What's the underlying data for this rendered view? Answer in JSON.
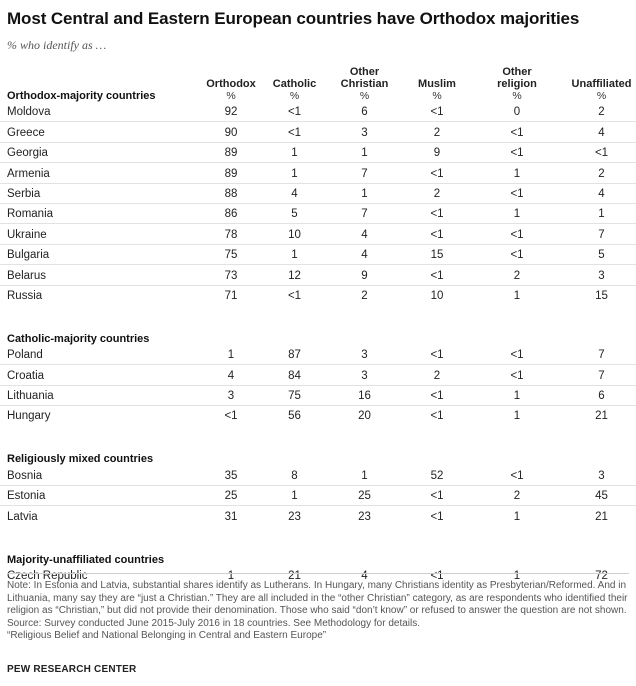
{
  "title": "Most Central and Eastern European countries have Orthodox majorities",
  "subtitle": "% who identify as …",
  "columns": [
    "Orthodox",
    "Catholic",
    "Other Christian",
    "Muslim",
    "Other religion",
    "Unaffiliated"
  ],
  "pct": "%",
  "groups": [
    {
      "label": "Orthodox-majority countries",
      "rows": [
        {
          "country": "Moldova",
          "values": [
            "92",
            "<1",
            "6",
            "<1",
            "0",
            "2"
          ]
        },
        {
          "country": "Greece",
          "values": [
            "90",
            "<1",
            "3",
            "2",
            "<1",
            "4"
          ]
        },
        {
          "country": "Georgia",
          "values": [
            "89",
            "1",
            "1",
            "9",
            "<1",
            "<1"
          ]
        },
        {
          "country": "Armenia",
          "values": [
            "89",
            "1",
            "7",
            "<1",
            "1",
            "2"
          ]
        },
        {
          "country": "Serbia",
          "values": [
            "88",
            "4",
            "1",
            "2",
            "<1",
            "4"
          ]
        },
        {
          "country": "Romania",
          "values": [
            "86",
            "5",
            "7",
            "<1",
            "1",
            "1"
          ]
        },
        {
          "country": "Ukraine",
          "values": [
            "78",
            "10",
            "4",
            "<1",
            "<1",
            "7"
          ]
        },
        {
          "country": "Bulgaria",
          "values": [
            "75",
            "1",
            "4",
            "15",
            "<1",
            "5"
          ]
        },
        {
          "country": "Belarus",
          "values": [
            "73",
            "12",
            "9",
            "<1",
            "2",
            "3"
          ]
        },
        {
          "country": "Russia",
          "values": [
            "71",
            "<1",
            "2",
            "10",
            "1",
            "15"
          ]
        }
      ]
    },
    {
      "label": "Catholic-majority countries",
      "rows": [
        {
          "country": "Poland",
          "values": [
            "1",
            "87",
            "3",
            "<1",
            "<1",
            "7"
          ]
        },
        {
          "country": "Croatia",
          "values": [
            "4",
            "84",
            "3",
            "2",
            "<1",
            "7"
          ]
        },
        {
          "country": "Lithuania",
          "values": [
            "3",
            "75",
            "16",
            "<1",
            "1",
            "6"
          ]
        },
        {
          "country": "Hungary",
          "values": [
            "<1",
            "56",
            "20",
            "<1",
            "1",
            "21"
          ]
        }
      ]
    },
    {
      "label": "Religiously mixed countries",
      "rows": [
        {
          "country": "Bosnia",
          "values": [
            "35",
            "8",
            "1",
            "52",
            "<1",
            "3"
          ]
        },
        {
          "country": "Estonia",
          "values": [
            "25",
            "1",
            "25",
            "<1",
            "2",
            "45"
          ]
        },
        {
          "country": "Latvia",
          "values": [
            "31",
            "23",
            "23",
            "<1",
            "1",
            "21"
          ]
        }
      ]
    },
    {
      "label": "Majority-unaffiliated countries",
      "rows": [
        {
          "country": "Czech Republic",
          "values": [
            "1",
            "21",
            "4",
            "<1",
            "1",
            "72"
          ]
        }
      ]
    }
  ],
  "note": "Note: In Estonia and Latvia, substantial shares identify as Lutherans. In Hungary, many Christians identity as Presbyterian/Reformed. And in Lithuania, many say they are “just a Christian.” They are all included in the “other Christian” category, as are respondents who identified their religion as “Christian,” but did not provide their denomination. Those who said “don’t know” or refused to answer the question are not shown.",
  "source": "Source: Survey conducted June 2015-July 2016 in 18 countries. See Methodology for details.",
  "report": "“Religious Belief and National Belonging in Central and Eastern Europe”",
  "brand": "PEW RESEARCH CENTER"
}
